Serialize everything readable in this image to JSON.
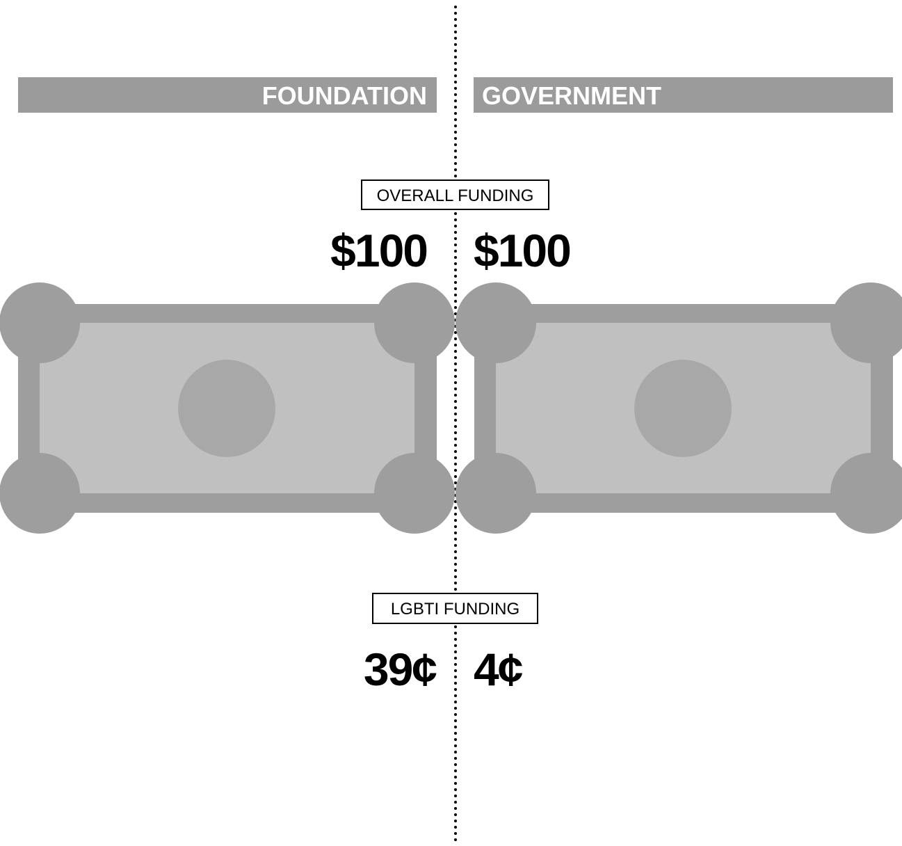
{
  "chart_data": {
    "type": "pictograph",
    "categories": [
      "FOUNDATION",
      "GOVERNMENT"
    ],
    "series": [
      {
        "name": "OVERALL FUNDING",
        "values": [
          100,
          100
        ],
        "value_labels": [
          "$100",
          "$100"
        ]
      },
      {
        "name": "LGBTI FUNDING",
        "values": [
          39,
          4
        ],
        "value_labels": [
          "39¢",
          "4¢"
        ],
        "colors": [
          "#cbcbcb",
          "#a4a4a4"
        ]
      }
    ]
  }
}
